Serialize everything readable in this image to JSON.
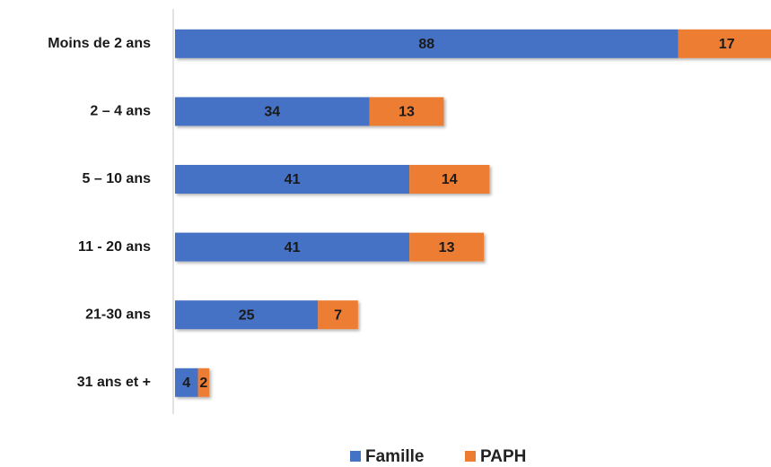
{
  "chart_data": {
    "type": "bar",
    "orientation": "horizontal",
    "stacked": true,
    "categories": [
      "Moins de 2 ans",
      "2 – 4 ans",
      "5 – 10  ans",
      "11 - 20 ans",
      "21-30 ans",
      "31 ans et +"
    ],
    "series": [
      {
        "name": "Famille",
        "color": "#4472c4",
        "values": [
          88,
          34,
          41,
          41,
          25,
          4
        ]
      },
      {
        "name": "PAPH",
        "color": "#ed7d31",
        "values": [
          17,
          13,
          14,
          13,
          7,
          2
        ]
      }
    ],
    "legend": "bottom"
  }
}
